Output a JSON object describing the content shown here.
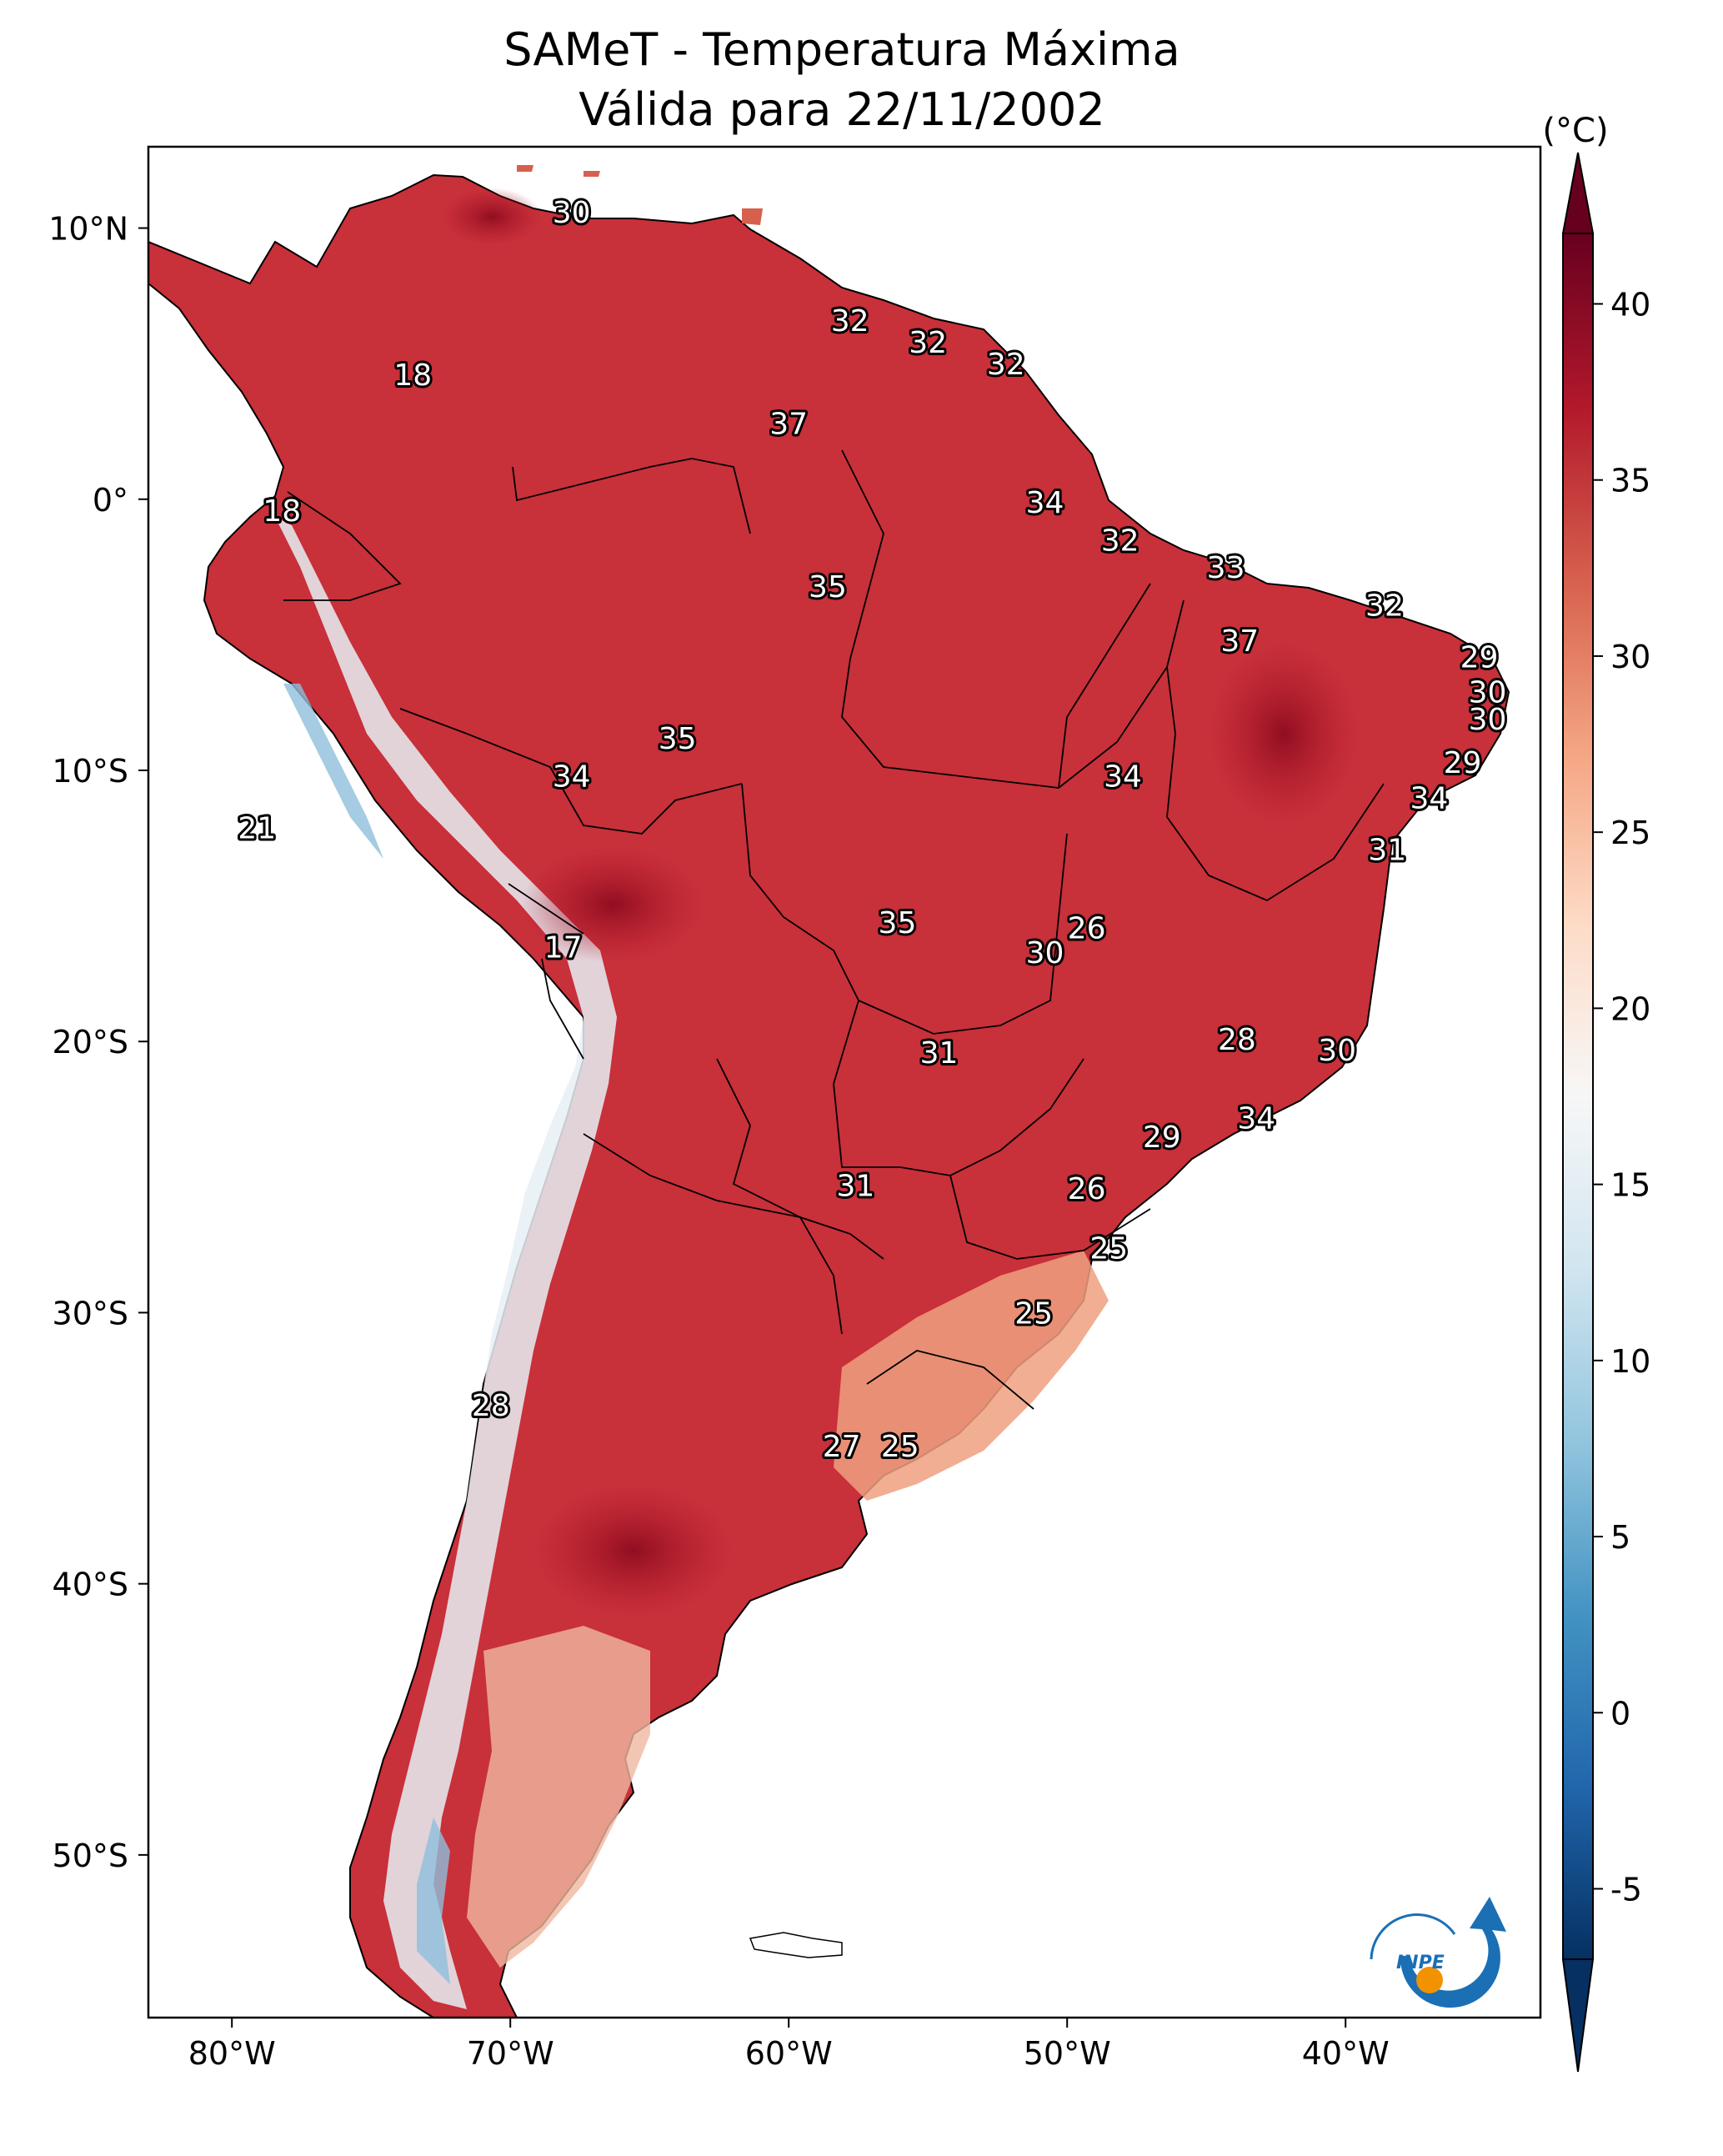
{
  "title": {
    "line1": "SAMeT - Temperatura Máxima",
    "line2": "Válida para 22/11/2002"
  },
  "map": {
    "lon_range": [
      -83,
      -33
    ],
    "lat_range": [
      -56,
      13
    ],
    "x_ticks": [
      {
        "lon": -80,
        "label": "80°W"
      },
      {
        "lon": -70,
        "label": "70°W"
      },
      {
        "lon": -60,
        "label": "60°W"
      },
      {
        "lon": -50,
        "label": "50°W"
      },
      {
        "lon": -40,
        "label": "40°W"
      }
    ],
    "y_ticks": [
      {
        "lat": 10,
        "label": "10°N"
      },
      {
        "lat": 0,
        "label": "0°"
      },
      {
        "lat": -10,
        "label": "10°S"
      },
      {
        "lat": -20,
        "label": "20°S"
      },
      {
        "lat": -30,
        "label": "30°S"
      },
      {
        "lat": -40,
        "label": "40°S"
      },
      {
        "lat": -50,
        "label": "50°S"
      }
    ],
    "station_labels": [
      {
        "lon": -67.8,
        "lat": 10.6,
        "value": "30"
      },
      {
        "lon": -57.8,
        "lat": 6.6,
        "value": "32"
      },
      {
        "lon": -55.0,
        "lat": 5.8,
        "value": "32"
      },
      {
        "lon": -52.2,
        "lat": 5.0,
        "value": "32"
      },
      {
        "lon": -73.5,
        "lat": 4.6,
        "value": "18"
      },
      {
        "lon": -60.0,
        "lat": 2.8,
        "value": "37"
      },
      {
        "lon": -78.2,
        "lat": -0.4,
        "value": "18"
      },
      {
        "lon": -50.8,
        "lat": -0.1,
        "value": "34"
      },
      {
        "lon": -48.1,
        "lat": -1.5,
        "value": "32"
      },
      {
        "lon": -44.3,
        "lat": -2.5,
        "value": "33"
      },
      {
        "lon": -58.6,
        "lat": -3.2,
        "value": "35"
      },
      {
        "lon": -38.6,
        "lat": -3.9,
        "value": "32"
      },
      {
        "lon": -43.8,
        "lat": -5.2,
        "value": "37"
      },
      {
        "lon": -35.2,
        "lat": -5.8,
        "value": "29"
      },
      {
        "lon": -34.9,
        "lat": -7.1,
        "value": "30"
      },
      {
        "lon": -34.9,
        "lat": -8.1,
        "value": "30"
      },
      {
        "lon": -64.0,
        "lat": -8.8,
        "value": "35"
      },
      {
        "lon": -35.8,
        "lat": -9.7,
        "value": "29"
      },
      {
        "lon": -67.8,
        "lat": -10.2,
        "value": "34"
      },
      {
        "lon": -48.0,
        "lat": -10.2,
        "value": "34"
      },
      {
        "lon": -37.0,
        "lat": -11.0,
        "value": "34"
      },
      {
        "lon": -79.1,
        "lat": -12.1,
        "value": "21"
      },
      {
        "lon": -38.5,
        "lat": -12.9,
        "value": "31"
      },
      {
        "lon": -49.3,
        "lat": -15.8,
        "value": "26"
      },
      {
        "lon": -56.1,
        "lat": -15.6,
        "value": "35"
      },
      {
        "lon": -50.8,
        "lat": -16.7,
        "value": "30"
      },
      {
        "lon": -68.1,
        "lat": -16.5,
        "value": "17"
      },
      {
        "lon": -43.9,
        "lat": -19.9,
        "value": "28"
      },
      {
        "lon": -54.6,
        "lat": -20.4,
        "value": "31"
      },
      {
        "lon": -40.3,
        "lat": -20.3,
        "value": "30"
      },
      {
        "lon": -43.2,
        "lat": -22.8,
        "value": "34"
      },
      {
        "lon": -46.6,
        "lat": -23.5,
        "value": "29"
      },
      {
        "lon": -49.3,
        "lat": -25.4,
        "value": "26"
      },
      {
        "lon": -57.6,
        "lat": -25.3,
        "value": "31"
      },
      {
        "lon": -48.5,
        "lat": -27.6,
        "value": "25"
      },
      {
        "lon": -51.2,
        "lat": -30.0,
        "value": "25"
      },
      {
        "lon": -70.7,
        "lat": -33.4,
        "value": "28"
      },
      {
        "lon": -58.1,
        "lat": -34.9,
        "value": "27"
      },
      {
        "lon": -56.0,
        "lat": -34.9,
        "value": "25"
      }
    ]
  },
  "colorbar": {
    "unit": "(°C)",
    "min": -7,
    "max": 42,
    "ticks": [
      {
        "value": 40,
        "label": "40"
      },
      {
        "value": 35,
        "label": "35"
      },
      {
        "value": 30,
        "label": "30"
      },
      {
        "value": 25,
        "label": "25"
      },
      {
        "value": 20,
        "label": "20"
      },
      {
        "value": 15,
        "label": "15"
      },
      {
        "value": 10,
        "label": "10"
      },
      {
        "value": 5,
        "label": "5"
      },
      {
        "value": 0,
        "label": "0"
      },
      {
        "value": -5,
        "label": "-5"
      }
    ],
    "colors": [
      "#053061",
      "#2166ac",
      "#4393c3",
      "#92c5de",
      "#d1e5f0",
      "#f7f7f7",
      "#fddbc7",
      "#f4a582",
      "#d6604d",
      "#b2182b",
      "#67001f"
    ]
  },
  "logo": {
    "text": "INPE",
    "primary_color": "#1a6fb5",
    "accent_color": "#f39200"
  }
}
